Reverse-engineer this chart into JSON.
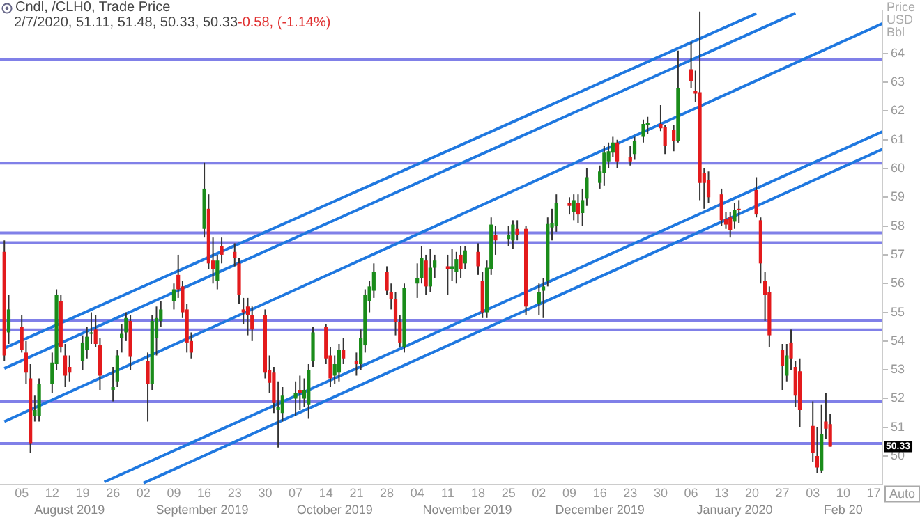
{
  "chart_data": {
    "type": "candlestick",
    "title": "Cndl, /CLH0, Trade Price",
    "subtitle": "2/7/2020, 51.11, 51.48, 50.33, 50.33",
    "ylabel": "Price USD Bbl",
    "annotations": [
      "-0.58, (-1.14%)",
      "Auto",
      {
        "text": "50.33",
        "y": 50.33
      },
      "August 2019",
      "September 2019",
      "October 2019",
      "November 2019",
      "December 2019",
      "January 2020",
      "Feb 20"
    ],
    "x": [
      "2019-08-01",
      "2019-08-02",
      "2019-08-05",
      "2019-08-06",
      "2019-08-07",
      "2019-08-08",
      "2019-08-09",
      "2019-08-12",
      "2019-08-13",
      "2019-08-14",
      "2019-08-15",
      "2019-08-16",
      "2019-08-19",
      "2019-08-20",
      "2019-08-21",
      "2019-08-22",
      "2019-08-23",
      "2019-08-26",
      "2019-08-27",
      "2019-08-28",
      "2019-08-29",
      "2019-08-30",
      "2019-09-03",
      "2019-09-04",
      "2019-09-05",
      "2019-09-06",
      "2019-09-09",
      "2019-09-10",
      "2019-09-11",
      "2019-09-12",
      "2019-09-13",
      "2019-09-16",
      "2019-09-17",
      "2019-09-18",
      "2019-09-19",
      "2019-09-20",
      "2019-09-23",
      "2019-09-24",
      "2019-09-25",
      "2019-09-26",
      "2019-09-27",
      "2019-09-30",
      "2019-10-01",
      "2019-10-02",
      "2019-10-03",
      "2019-10-04",
      "2019-10-07",
      "2019-10-08",
      "2019-10-09",
      "2019-10-10",
      "2019-10-11",
      "2019-10-14",
      "2019-10-15",
      "2019-10-16",
      "2019-10-17",
      "2019-10-18",
      "2019-10-21",
      "2019-10-22",
      "2019-10-23",
      "2019-10-24",
      "2019-10-25",
      "2019-10-28",
      "2019-10-29",
      "2019-10-30",
      "2019-10-31",
      "2019-11-01",
      "2019-11-04",
      "2019-11-05",
      "2019-11-06",
      "2019-11-07",
      "2019-11-08",
      "2019-11-11",
      "2019-11-12",
      "2019-11-13",
      "2019-11-14",
      "2019-11-15",
      "2019-11-18",
      "2019-11-19",
      "2019-11-20",
      "2019-11-21",
      "2019-11-22",
      "2019-11-25",
      "2019-11-26",
      "2019-11-27",
      "2019-11-29",
      "2019-12-02",
      "2019-12-03",
      "2019-12-04",
      "2019-12-05",
      "2019-12-06",
      "2019-12-09",
      "2019-12-10",
      "2019-12-11",
      "2019-12-12",
      "2019-12-13",
      "2019-12-16",
      "2019-12-17",
      "2019-12-18",
      "2019-12-19",
      "2019-12-20",
      "2019-12-23",
      "2019-12-24",
      "2019-12-26",
      "2019-12-27",
      "2019-12-30",
      "2019-12-31",
      "2020-01-02",
      "2020-01-03",
      "2020-01-06",
      "2020-01-07",
      "2020-01-08",
      "2020-01-09",
      "2020-01-10",
      "2020-01-13",
      "2020-01-14",
      "2020-01-15",
      "2020-01-16",
      "2020-01-17",
      "2020-01-21",
      "2020-01-22",
      "2020-01-23",
      "2020-01-24",
      "2020-01-27",
      "2020-01-28",
      "2020-01-29",
      "2020-01-30",
      "2020-01-31",
      "2020-02-03",
      "2020-02-04",
      "2020-02-05",
      "2020-02-06",
      "2020-02-07"
    ],
    "ohlc": [
      [
        57.1,
        57.5,
        53.3,
        53.5
      ],
      [
        54.3,
        55.6,
        53.9,
        55.1
      ],
      [
        54.5,
        54.9,
        53.6,
        53.7
      ],
      [
        53.6,
        54.0,
        52.5,
        52.9
      ],
      [
        52.7,
        53.2,
        50.1,
        50.45
      ],
      [
        51.4,
        52.1,
        51.2,
        51.6
      ],
      [
        51.4,
        52.7,
        51.2,
        52.5
      ],
      [
        52.5,
        53.6,
        52.2,
        53.25
      ],
      [
        53.2,
        55.8,
        53.0,
        55.6
      ],
      [
        55.4,
        55.6,
        53.6,
        53.8
      ],
      [
        53.5,
        53.9,
        52.4,
        52.8
      ],
      [
        53.1,
        53.5,
        52.6,
        52.9
      ],
      [
        53.3,
        54.2,
        53.0,
        53.95
      ],
      [
        53.7,
        54.5,
        53.4,
        54.15
      ],
      [
        54.25,
        55.0,
        53.9,
        54.3
      ],
      [
        54.4,
        54.9,
        53.8,
        53.9
      ],
      [
        53.85,
        54.1,
        52.3,
        52.8
      ],
      [
        52.3,
        53.1,
        51.9,
        52.4
      ],
      [
        52.6,
        53.7,
        52.4,
        53.5
      ],
      [
        54.1,
        54.6,
        53.6,
        54.25
      ],
      [
        54.3,
        55.0,
        54.0,
        54.8
      ],
      [
        54.7,
        54.9,
        53.0,
        53.45
      ],
      [
        53.3,
        53.6,
        51.2,
        52.5
      ],
      [
        52.5,
        54.9,
        52.3,
        54.7
      ],
      [
        54.1,
        55.2,
        53.5,
        54.8
      ],
      [
        54.7,
        55.4,
        54.5,
        55.1
      ],
      [
        55.4,
        56.0,
        55.1,
        55.8
      ],
      [
        56.3,
        57.0,
        55.5,
        55.8
      ],
      [
        55.9,
        56.1,
        54.8,
        55.0
      ],
      [
        55.1,
        55.3,
        53.6,
        53.95
      ],
      [
        54.0,
        54.3,
        53.4,
        53.6
      ],
      [
        57.9,
        60.2,
        57.6,
        59.3
      ],
      [
        58.6,
        59.1,
        56.5,
        56.7
      ],
      [
        56.8,
        57.6,
        56.0,
        56.5
      ],
      [
        56.1,
        57.0,
        55.8,
        56.8
      ],
      [
        57.3,
        57.6,
        56.7,
        57.0
      ],
      [
        57.1,
        57.4,
        56.6,
        56.9
      ],
      [
        56.7,
        56.9,
        55.3,
        55.6
      ],
      [
        55.1,
        55.5,
        54.6,
        55.0
      ],
      [
        55.2,
        55.5,
        54.2,
        54.9
      ],
      [
        54.9,
        55.2,
        54.0,
        54.4
      ],
      [
        54.9,
        55.1,
        52.7,
        52.9
      ],
      [
        53.0,
        53.5,
        52.2,
        52.55
      ],
      [
        52.9,
        53.1,
        51.5,
        51.85
      ],
      [
        51.6,
        52.6,
        50.3,
        51.7
      ],
      [
        51.5,
        52.4,
        51.2,
        52.1
      ],
      [
        52.0,
        52.6,
        51.4,
        52.2
      ],
      [
        52.3,
        52.8,
        51.6,
        52.2
      ],
      [
        52.0,
        52.7,
        51.7,
        52.3
      ],
      [
        51.8,
        53.2,
        51.3,
        53.0
      ],
      [
        53.3,
        54.5,
        53.1,
        54.3
      ],
      [
        54.5,
        54.6,
        53.2,
        53.4
      ],
      [
        53.5,
        53.8,
        52.4,
        52.7
      ],
      [
        52.8,
        53.5,
        52.5,
        53.2
      ],
      [
        52.9,
        53.9,
        52.6,
        53.7
      ],
      [
        53.7,
        54.1,
        53.2,
        53.4
      ],
      [
        53.3,
        53.6,
        52.8,
        53.2
      ],
      [
        53.2,
        54.4,
        53.0,
        54.1
      ],
      [
        53.85,
        55.8,
        53.6,
        55.6
      ],
      [
        55.4,
        56.1,
        55.0,
        55.9
      ],
      [
        55.75,
        56.7,
        55.5,
        56.4
      ],
      [
        56.4,
        56.6,
        55.6,
        55.75
      ],
      [
        55.7,
        56.0,
        55.1,
        55.45
      ],
      [
        55.45,
        55.7,
        54.2,
        54.65
      ],
      [
        54.65,
        54.9,
        53.8,
        53.95
      ],
      [
        53.8,
        56.0,
        53.6,
        55.85
      ],
      [
        56.0,
        56.7,
        55.5,
        56.2
      ],
      [
        56.2,
        57.3,
        56.0,
        56.9
      ],
      [
        56.8,
        57.0,
        55.6,
        55.9
      ],
      [
        55.9,
        57.2,
        55.7,
        56.55
      ],
      [
        56.55,
        57.0,
        56.2,
        56.8
      ],
      [
        56.6,
        57.0,
        55.6,
        56.5
      ],
      [
        56.5,
        57.2,
        56.1,
        56.6
      ],
      [
        56.4,
        57.1,
        56.0,
        56.85
      ],
      [
        57.0,
        57.3,
        56.2,
        56.5
      ],
      [
        56.7,
        57.3,
        56.5,
        57.15
      ],
      [
        57.1,
        57.4,
        56.3,
        56.6
      ],
      [
        56.1,
        56.4,
        54.8,
        55.0
      ],
      [
        55.0,
        56.8,
        54.8,
        56.55
      ],
      [
        56.5,
        58.3,
        56.3,
        58.05
      ],
      [
        57.7,
        58.0,
        57.0,
        57.5
      ],
      [
        57.55,
        58.0,
        57.3,
        57.7
      ],
      [
        57.5,
        58.2,
        57.2,
        58.05
      ],
      [
        57.9,
        58.2,
        57.5,
        57.7
      ],
      [
        57.9,
        58.0,
        54.9,
        55.2
      ],
      [
        55.3,
        56.0,
        54.9,
        55.7
      ],
      [
        55.75,
        56.2,
        54.8,
        55.9
      ],
      [
        56.1,
        58.3,
        55.9,
        58.07
      ],
      [
        57.95,
        58.6,
        57.5,
        58.1
      ],
      [
        58.0,
        59.1,
        57.8,
        58.8
      ],
      [
        58.8,
        59.0,
        58.4,
        58.7
      ],
      [
        58.5,
        59.1,
        58.2,
        58.9
      ],
      [
        58.8,
        59.1,
        58.1,
        58.4
      ],
      [
        58.45,
        59.3,
        58.0,
        58.9
      ],
      [
        58.95,
        60.0,
        58.7,
        59.7
      ],
      [
        59.5,
        60.1,
        59.3,
        59.9
      ],
      [
        59.85,
        60.8,
        59.4,
        60.55
      ],
      [
        60.25,
        60.9,
        60.0,
        60.6
      ],
      [
        60.55,
        61.1,
        60.4,
        60.9
      ],
      [
        60.9,
        61.0,
        60.0,
        60.25
      ],
      [
        60.4,
        60.8,
        60.1,
        60.25
      ],
      [
        60.5,
        61.1,
        60.3,
        60.95
      ],
      [
        61.1,
        61.7,
        60.9,
        61.55
      ],
      [
        61.5,
        61.8,
        61.2,
        61.6
      ],
      [
        61.55,
        62.2,
        61.3,
        61.4
      ],
      [
        61.45,
        61.5,
        60.5,
        60.8
      ],
      [
        61.35,
        61.5,
        60.6,
        60.95
      ],
      [
        60.95,
        64.1,
        60.9,
        62.8
      ],
      [
        63.45,
        64.4,
        62.8,
        63.05
      ],
      [
        62.7,
        63.4,
        62.3,
        62.6
      ],
      [
        62.65,
        65.45,
        58.9,
        59.5
      ],
      [
        59.85,
        60.0,
        58.6,
        59.5
      ],
      [
        59.6,
        59.9,
        58.8,
        59.0
      ],
      [
        59.1,
        59.3,
        58.0,
        58.2
      ],
      [
        58.25,
        58.5,
        57.9,
        58.05
      ],
      [
        58.3,
        58.5,
        57.6,
        57.85
      ],
      [
        58.15,
        58.8,
        57.9,
        58.55
      ],
      [
        58.6,
        58.9,
        58.1,
        58.55
      ],
      [
        59.25,
        59.7,
        58.3,
        58.4
      ],
      [
        58.2,
        58.3,
        56.0,
        56.7
      ],
      [
        56.1,
        56.4,
        54.7,
        55.6
      ],
      [
        55.7,
        55.9,
        53.8,
        54.2
      ],
      [
        53.7,
        53.9,
        52.3,
        53.15
      ],
      [
        52.8,
        53.9,
        52.6,
        53.5
      ],
      [
        53.95,
        54.4,
        53.0,
        53.4
      ],
      [
        53.1,
        53.3,
        51.7,
        52.1
      ],
      [
        52.95,
        53.4,
        51.0,
        51.6
      ],
      [
        51.05,
        51.9,
        49.8,
        50.1
      ],
      [
        50.0,
        51.0,
        49.4,
        49.6
      ],
      [
        49.5,
        51.8,
        49.4,
        50.75
      ],
      [
        51.2,
        52.2,
        50.6,
        50.95
      ],
      [
        51.11,
        51.48,
        50.33,
        50.33
      ]
    ],
    "colors": [
      "#e31a1c",
      "#1a8c1a",
      "#e31a1c",
      "#e31a1c",
      "#e31a1c",
      "#1a8c1a",
      "#1a8c1a",
      "#1a8c1a",
      "#1a8c1a",
      "#e31a1c",
      "#e31a1c",
      "#e31a1c",
      "#1a8c1a",
      "#1a8c1a",
      "#1a8c1a",
      "#e31a1c",
      "#e31a1c",
      "#1a8c1a",
      "#1a8c1a",
      "#1a8c1a",
      "#1a8c1a",
      "#e31a1c",
      "#e31a1c",
      "#1a8c1a",
      "#1a8c1a",
      "#1a8c1a",
      "#1a8c1a",
      "#e31a1c",
      "#e31a1c",
      "#e31a1c",
      "#e31a1c",
      "#1a8c1a",
      "#e31a1c",
      "#e31a1c",
      "#1a8c1a",
      "#e31a1c",
      "#e31a1c",
      "#e31a1c",
      "#e31a1c",
      "#e31a1c",
      "#e31a1c",
      "#e31a1c",
      "#e31a1c",
      "#e31a1c",
      "#1a8c1a",
      "#1a8c1a",
      "#1a8c1a",
      "#e31a1c",
      "#1a8c1a",
      "#1a8c1a",
      "#1a8c1a",
      "#e31a1c",
      "#e31a1c",
      "#1a8c1a",
      "#1a8c1a",
      "#e31a1c",
      "#e31a1c",
      "#1a8c1a",
      "#1a8c1a",
      "#1a8c1a",
      "#1a8c1a",
      "#e31a1c",
      "#e31a1c",
      "#e31a1c",
      "#e31a1c",
      "#1a8c1a",
      "#1a8c1a",
      "#1a8c1a",
      "#e31a1c",
      "#1a8c1a",
      "#1a8c1a",
      "#e31a1c",
      "#1a8c1a",
      "#1a8c1a",
      "#e31a1c",
      "#1a8c1a",
      "#e31a1c",
      "#e31a1c",
      "#1a8c1a",
      "#1a8c1a",
      "#e31a1c",
      "#1a8c1a",
      "#1a8c1a",
      "#e31a1c",
      "#e31a1c",
      "#1a8c1a",
      "#1a8c1a",
      "#1a8c1a",
      "#1a8c1a",
      "#1a8c1a",
      "#e31a1c",
      "#1a8c1a",
      "#e31a1c",
      "#1a8c1a",
      "#1a8c1a",
      "#1a8c1a",
      "#1a8c1a",
      "#1a8c1a",
      "#1a8c1a",
      "#e31a1c",
      "#e31a1c",
      "#1a8c1a",
      "#1a8c1a",
      "#1a8c1a",
      "#e31a1c",
      "#e31a1c",
      "#e31a1c",
      "#1a8c1a",
      "#e31a1c",
      "#e31a1c",
      "#e31a1c",
      "#e31a1c",
      "#e31a1c",
      "#e31a1c",
      "#e31a1c",
      "#e31a1c",
      "#1a8c1a",
      "#e31a1c",
      "#e31a1c",
      "#e31a1c",
      "#e31a1c",
      "#e31a1c",
      "#e31a1c",
      "#1a8c1a",
      "#e31a1c",
      "#e31a1c",
      "#e31a1c",
      "#e31a1c",
      "#e31a1c",
      "#1a8c1a",
      "#e31a1c",
      "#e31a1c"
    ],
    "series": [
      {
        "type": "line",
        "color": "#1f78e0",
        "x": [
          "2019-08-01",
          "2020-01-21"
        ],
        "values": [
          53.75,
          65.39
        ]
      },
      {
        "type": "line",
        "color": "#1f78e0",
        "x": [
          "2019-08-01",
          "2020-01-30"
        ],
        "values": [
          53.05,
          65.4
        ]
      },
      {
        "type": "line",
        "color": "#1f78e0",
        "x": [
          "2019-08-01",
          "2020-02-19"
        ],
        "values": [
          51.2,
          65.04
        ]
      },
      {
        "type": "line",
        "color": "#1f78e0",
        "x": [
          "2019-08-24",
          "2020-02-19"
        ],
        "values": [
          49.1,
          61.28
        ]
      },
      {
        "type": "line",
        "color": "#1f78e0",
        "x": [
          "2019-09-02",
          "2020-02-19"
        ],
        "values": [
          49.06,
          60.67
        ]
      }
    ],
    "ref_lines": [
      {
        "axis": "y",
        "value": 63.79,
        "color": "#8080e8"
      },
      {
        "axis": "y",
        "value": 60.19,
        "color": "#8080e8"
      },
      {
        "axis": "y",
        "value": 57.76,
        "color": "#8080e8"
      },
      {
        "axis": "y",
        "value": 57.42,
        "color": "#8080e8"
      },
      {
        "axis": "y",
        "value": 54.72,
        "color": "#8080e8"
      },
      {
        "axis": "y",
        "value": 54.39,
        "color": "#8080e8"
      },
      {
        "axis": "y",
        "value": 51.89,
        "color": "#8080e8"
      },
      {
        "axis": "y",
        "value": 50.44,
        "color": "#8080e8"
      }
    ],
    "xlim": [
      "2019-07-31",
      "2020-02-19"
    ],
    "xticks": [
      {
        "value": "2019-08-05",
        "label": "05"
      },
      {
        "value": "2019-08-12",
        "label": "12"
      },
      {
        "value": "2019-08-19",
        "label": "19"
      },
      {
        "value": "2019-08-26",
        "label": "26"
      },
      {
        "value": "2019-09-02",
        "label": "02"
      },
      {
        "value": "2019-09-09",
        "label": "09"
      },
      {
        "value": "2019-09-16",
        "label": "16"
      },
      {
        "value": "2019-09-23",
        "label": "23"
      },
      {
        "value": "2019-09-30",
        "label": "30"
      },
      {
        "value": "2019-10-07",
        "label": "07"
      },
      {
        "value": "2019-10-14",
        "label": "14"
      },
      {
        "value": "2019-10-21",
        "label": "21"
      },
      {
        "value": "2019-10-28",
        "label": "28"
      },
      {
        "value": "2019-11-04",
        "label": "04"
      },
      {
        "value": "2019-11-11",
        "label": "11"
      },
      {
        "value": "2019-11-18",
        "label": "18"
      },
      {
        "value": "2019-11-25",
        "label": "25"
      },
      {
        "value": "2019-12-02",
        "label": "02"
      },
      {
        "value": "2019-12-09",
        "label": "09"
      },
      {
        "value": "2019-12-16",
        "label": "16"
      },
      {
        "value": "2019-12-23",
        "label": "23"
      },
      {
        "value": "2019-12-30",
        "label": "30"
      },
      {
        "value": "2020-01-06",
        "label": "06"
      },
      {
        "value": "2020-01-13",
        "label": "13"
      },
      {
        "value": "2020-01-20",
        "label": "20"
      },
      {
        "value": "2020-01-27",
        "label": "27"
      },
      {
        "value": "2020-02-03",
        "label": "03"
      },
      {
        "value": "2020-02-10",
        "label": "10"
      },
      {
        "value": "2020-02-17",
        "label": "17"
      }
    ],
    "ylim": [
      49,
      65.5
    ],
    "yticks": [
      50,
      51,
      52,
      53,
      54,
      55,
      56,
      57,
      58,
      59,
      60,
      61,
      62,
      63,
      64
    ],
    "grid": false,
    "legend": false
  }
}
